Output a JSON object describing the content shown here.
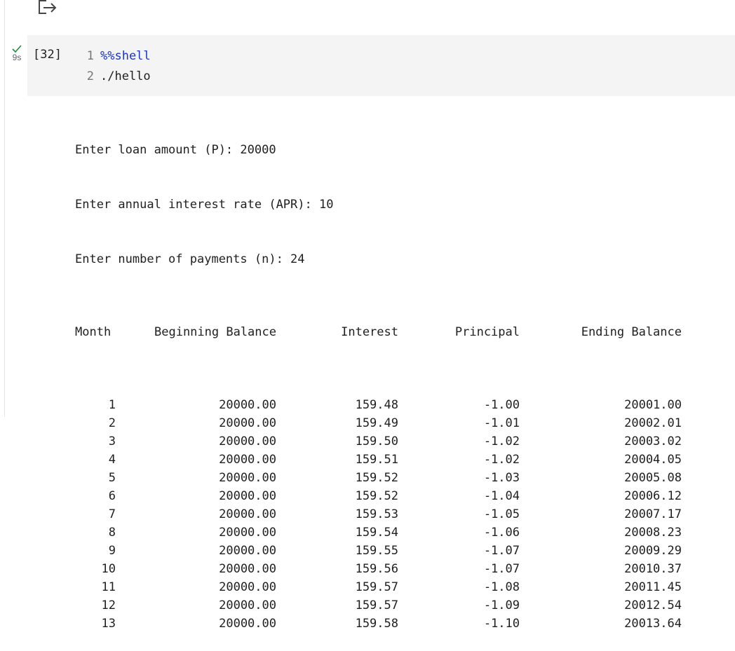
{
  "cell": {
    "run_status_icon": "checkmark-icon",
    "run_time": "9s",
    "execution_count": "[32]",
    "code_lines": [
      {
        "num": "1",
        "text": "%%shell"
      },
      {
        "num": "2",
        "text": "./hello"
      }
    ]
  },
  "output": {
    "prompts": [
      "Enter loan amount (P): 20000",
      "Enter annual interest rate (APR): 10",
      "Enter number of payments (n): 24"
    ],
    "headers": {
      "month": "Month",
      "beginning": "Beginning Balance",
      "interest": "Interest",
      "principal": "Principal",
      "ending": "Ending Balance"
    },
    "rows": [
      {
        "month": "1",
        "beginning": "20000.00",
        "interest": "159.48",
        "principal": "-1.00",
        "ending": "20001.00"
      },
      {
        "month": "2",
        "beginning": "20000.00",
        "interest": "159.49",
        "principal": "-1.01",
        "ending": "20002.01"
      },
      {
        "month": "3",
        "beginning": "20000.00",
        "interest": "159.50",
        "principal": "-1.02",
        "ending": "20003.02"
      },
      {
        "month": "4",
        "beginning": "20000.00",
        "interest": "159.51",
        "principal": "-1.02",
        "ending": "20004.05"
      },
      {
        "month": "5",
        "beginning": "20000.00",
        "interest": "159.52",
        "principal": "-1.03",
        "ending": "20005.08"
      },
      {
        "month": "6",
        "beginning": "20000.00",
        "interest": "159.52",
        "principal": "-1.04",
        "ending": "20006.12"
      },
      {
        "month": "7",
        "beginning": "20000.00",
        "interest": "159.53",
        "principal": "-1.05",
        "ending": "20007.17"
      },
      {
        "month": "8",
        "beginning": "20000.00",
        "interest": "159.54",
        "principal": "-1.06",
        "ending": "20008.23"
      },
      {
        "month": "9",
        "beginning": "20000.00",
        "interest": "159.55",
        "principal": "-1.07",
        "ending": "20009.29"
      },
      {
        "month": "10",
        "beginning": "20000.00",
        "interest": "159.56",
        "principal": "-1.07",
        "ending": "20010.37"
      },
      {
        "month": "11",
        "beginning": "20000.00",
        "interest": "159.57",
        "principal": "-1.08",
        "ending": "20011.45"
      },
      {
        "month": "12",
        "beginning": "20000.00",
        "interest": "159.57",
        "principal": "-1.09",
        "ending": "20012.54"
      },
      {
        "month": "13",
        "beginning": "20000.00",
        "interest": "159.58",
        "principal": "-1.10",
        "ending": "20013.64"
      }
    ]
  },
  "toolbar": {
    "output_action_icon": "export-output-icon"
  },
  "colors": {
    "success": "#1e8e3e",
    "magic_keyword": "#1a35c8",
    "cell_background": "#f4f4f4",
    "line_number": "#757575"
  }
}
